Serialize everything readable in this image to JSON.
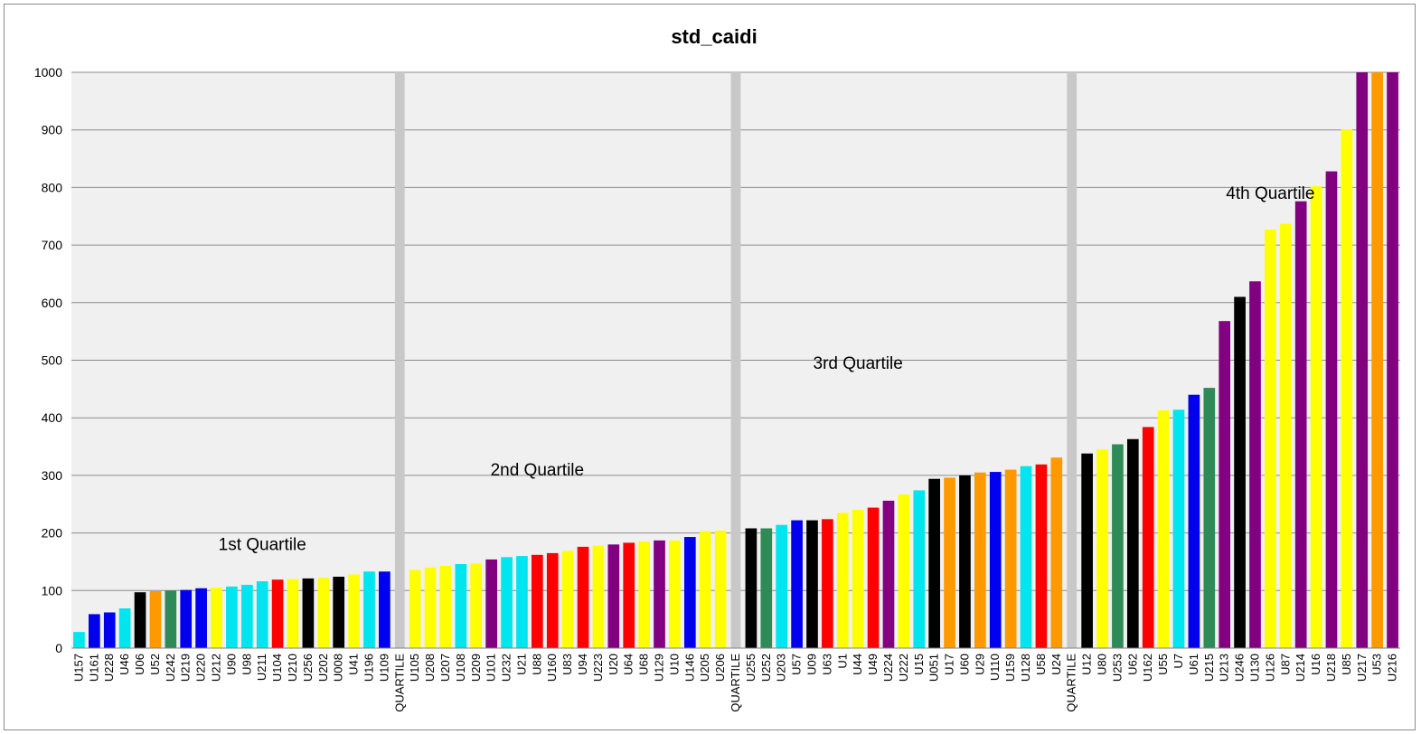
{
  "chart_data": {
    "type": "bar",
    "title": "std_caidi",
    "xlabel": "",
    "ylabel": "",
    "ylim": [
      0,
      1000
    ],
    "yticks": [
      0,
      100,
      200,
      300,
      400,
      500,
      600,
      700,
      800,
      900,
      1000
    ],
    "grid": true,
    "legend": "none",
    "categories": [
      "U157",
      "U161",
      "U228",
      "U46",
      "U06",
      "U52",
      "U242",
      "U219",
      "U220",
      "U212",
      "U90",
      "U98",
      "U211",
      "U104",
      "U210",
      "U256",
      "U202",
      "U008",
      "U41",
      "U196",
      "U109",
      "QUARTILE",
      "U105",
      "U208",
      "U207",
      "U108",
      "U209",
      "U101",
      "U232",
      "U21",
      "U88",
      "U160",
      "U83",
      "U94",
      "U223",
      "U20",
      "U64",
      "U68",
      "U129",
      "U10",
      "U146",
      "U205",
      "U206",
      "QUARTILE",
      "U255",
      "U252",
      "U203",
      "U57",
      "U09",
      "U63",
      "U1",
      "U44",
      "U49",
      "U224",
      "U222",
      "U15",
      "U051",
      "U17",
      "U60",
      "U29",
      "U110",
      "U159",
      "U128",
      "U58",
      "U24",
      "QUARTILE",
      "U12",
      "U80",
      "U253",
      "U62",
      "U162",
      "U55",
      "U7",
      "U61",
      "U215",
      "U213",
      "U246",
      "U130",
      "U126",
      "U87",
      "U214",
      "U16",
      "U218",
      "U85",
      "U217",
      "U53",
      "U216"
    ],
    "values": [
      28,
      59,
      62,
      69,
      97,
      99,
      100,
      101,
      104,
      105,
      107,
      110,
      116,
      119,
      120,
      121,
      122,
      124,
      128,
      133,
      133,
      1000,
      136,
      140,
      143,
      146,
      147,
      154,
      158,
      160,
      162,
      165,
      169,
      176,
      178,
      180,
      183,
      185,
      187,
      187,
      193,
      203,
      204,
      1000,
      208,
      208,
      214,
      222,
      222,
      224,
      235,
      240,
      244,
      256,
      267,
      274,
      294,
      296,
      300,
      305,
      306,
      310,
      316,
      319,
      331,
      1000,
      338,
      345,
      354,
      363,
      384,
      413,
      414,
      440,
      452,
      568,
      610,
      637,
      727,
      737,
      776,
      802,
      828,
      901,
      1000,
      1000,
      1000
    ],
    "bar_colors": [
      "#00e5ee",
      "#0000ee",
      "#0000ee",
      "#00e5ee",
      "#000000",
      "#ff9900",
      "#2e8b57",
      "#0000ee",
      "#0000ee",
      "#ffff00",
      "#00e5ee",
      "#00e5ee",
      "#00e5ee",
      "#ff0000",
      "#ffff00",
      "#000000",
      "#ffff00",
      "#000000",
      "#ffff00",
      "#00e5ee",
      "#0000ee",
      "#c8c8c8",
      "#ffff00",
      "#ffff00",
      "#ffff00",
      "#00e5ee",
      "#ffff00",
      "#800080",
      "#00e5ee",
      "#00e5ee",
      "#ff0000",
      "#ff0000",
      "#ffff00",
      "#ff0000",
      "#ffff00",
      "#800080",
      "#ff0000",
      "#ffff00",
      "#800080",
      "#ffff00",
      "#0000ee",
      "#ffff00",
      "#ffff00",
      "#c8c8c8",
      "#000000",
      "#2e8b57",
      "#00e5ee",
      "#0000ee",
      "#000000",
      "#ff0000",
      "#ffff00",
      "#ffff00",
      "#ff0000",
      "#800080",
      "#ffff00",
      "#00e5ee",
      "#000000",
      "#ff9900",
      "#000000",
      "#ff9900",
      "#0000ee",
      "#ff9900",
      "#00e5ee",
      "#ff0000",
      "#ff9900",
      "#c8c8c8",
      "#000000",
      "#ffff00",
      "#2e8b57",
      "#000000",
      "#ff0000",
      "#ffff00",
      "#00e5ee",
      "#0000ee",
      "#2e8b57",
      "#800080",
      "#000000",
      "#800080",
      "#ffff00",
      "#ffff00",
      "#800080",
      "#ffff00",
      "#800080",
      "#ffff00",
      "#800080",
      "#ff9900",
      "#800080"
    ],
    "annotations": [
      {
        "text": "1st Quartile",
        "x": "U211",
        "y": 170
      },
      {
        "text": "2nd Quartile",
        "x": "U88",
        "y": 300
      },
      {
        "text": "3rd Quartile",
        "x": "U44",
        "y": 485
      },
      {
        "text": "4th Quartile",
        "x": "U126",
        "y": 780
      }
    ]
  }
}
